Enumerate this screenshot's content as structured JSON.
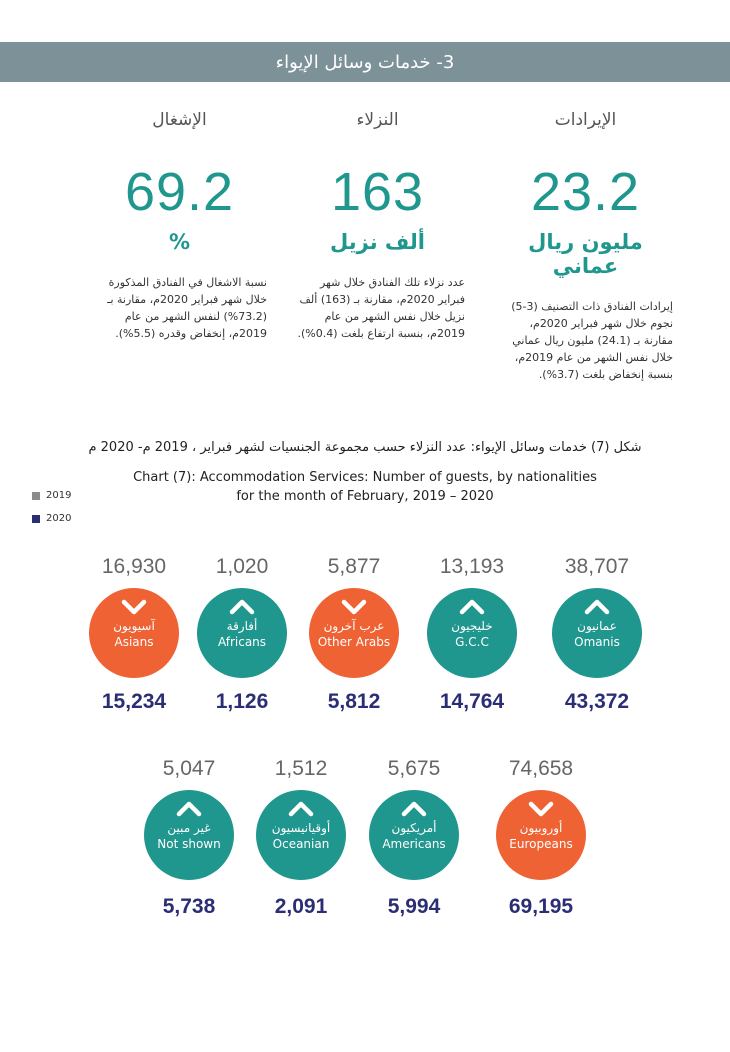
{
  "header": {
    "title": "3- خدمات وسائل الإيواء"
  },
  "kpis": [
    {
      "label": "الإيرادات",
      "value": "23.2",
      "unit": "مليون ريال عماني",
      "description": "إيرادات الفنادق ذات التصنيف (3-5) نجوم خلال شهر فبراير 2020م، مقارنة بـ (24.1) مليون ريال عماني خلال نفس الشهر من عام 2019م، بنسبة إنخفاض بلغت (3.7%)."
    },
    {
      "label": "النزلاء",
      "value": "163",
      "unit": "ألف نزيل",
      "description": "عدد نزلاء تلك الفنادق خلال شهر فبراير 2020م، مقارنة بـ (163) ألف نزيل خلال نفس الشهر من عام 2019م، بنسبة ارتفاع بلغت (0.4%)."
    },
    {
      "label": "الإشغال",
      "value": "69.2",
      "unit": "%",
      "description": "نسبة الاشغال في الفنادق المذكورة خلال شهر فبراير 2020م، مقارنة بـ (73.2%) لنفس الشهر من عام 2019م، إنخفاض وقدره (5.5%)."
    }
  ],
  "chart": {
    "title_ar": "شكل (7) خدمات وسائل الإيواء: عدد النزلاء حسب مجموعة الجنسيات لشهر فبراير ، 2019 م- 2020 م",
    "title_en_line1": "Chart (7): Accommodation Services: Number of guests, by nationalities",
    "title_en_line2": "for the month of February, 2019 – 2020",
    "legend": [
      {
        "label": "2019",
        "color": "#8c8c8c"
      },
      {
        "label": "2020",
        "color": "#2b2e75"
      }
    ]
  },
  "colors": {
    "teal": "#1f968e",
    "orange": "#ee6233",
    "header": "#7d9198",
    "navy": "#2b2e75"
  },
  "chart_data": {
    "type": "table",
    "title": "Chart (7): Accommodation Services: Number of guests, by nationalities for the month of February, 2019 – 2020",
    "columns": [
      "nationality_ar",
      "nationality_en",
      "2019",
      "2020",
      "trend"
    ],
    "rows": [
      {
        "ar": "عمانيون",
        "en": "Omanis",
        "v2019": "38,707",
        "v2020": "43,372",
        "trend": "up"
      },
      {
        "ar": "خليجيون",
        "en": "G.C.C",
        "v2019": "13,193",
        "v2020": "14,764",
        "trend": "up"
      },
      {
        "ar": "عرب آخرون",
        "en": "Other Arabs",
        "v2019": "5,877",
        "v2020": "5,812",
        "trend": "down"
      },
      {
        "ar": "أفارقة",
        "en": "Africans",
        "v2019": "1,020",
        "v2020": "1,126",
        "trend": "up"
      },
      {
        "ar": "آسيويون",
        "en": "Asians",
        "v2019": "16,930",
        "v2020": "15,234",
        "trend": "down"
      },
      {
        "ar": "أوروبيون",
        "en": "Europeans",
        "v2019": "74,658",
        "v2020": "69,195",
        "trend": "down"
      },
      {
        "ar": "أمريكيون",
        "en": "Americans",
        "v2019": "5,675",
        "v2020": "5,994",
        "trend": "up"
      },
      {
        "ar": "أوقيانيسيون",
        "en": "Oceanian",
        "v2019": "1,512",
        "v2020": "2,091",
        "trend": "up"
      },
      {
        "ar": "غير مبين",
        "en": "Not shown",
        "v2019": "5,047",
        "v2020": "5,738",
        "trend": "up"
      }
    ]
  }
}
